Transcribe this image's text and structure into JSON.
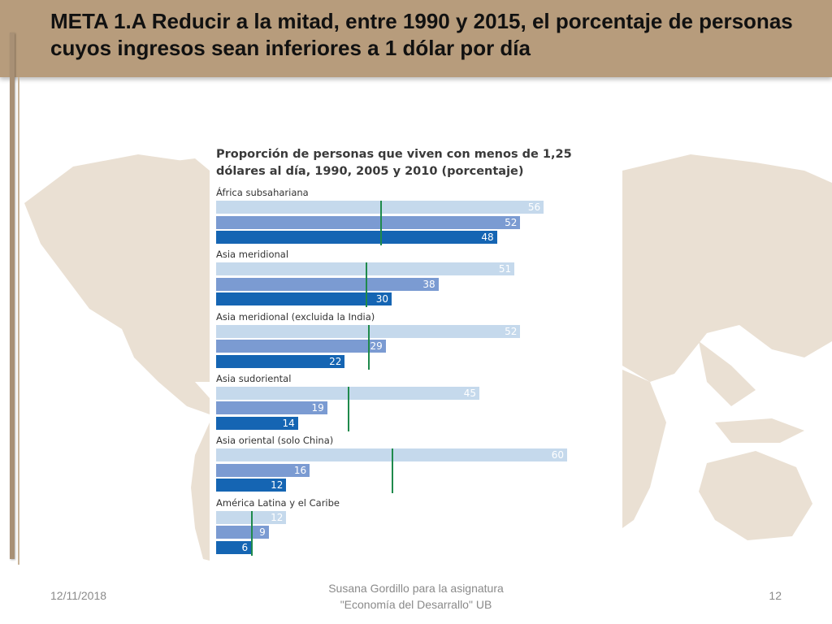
{
  "slide": {
    "title": "META 1.A Reducir a la mitad, entre 1990 y 2015, el porcentaje de personas cuyos ingresos sean inferiores a 1 dólar por día",
    "footer_date": "12/11/2018",
    "footer_center_line1": "Susana Gordillo para la asignatura",
    "footer_center_line2": "\"Economía del Desarrallo\" UB",
    "page_number": "12"
  },
  "colors": {
    "title_bar": "#b79c7c",
    "bar_1990": "#c5d9ec",
    "bar_2005": "#7b9bd2",
    "bar_2010": "#1565b3",
    "target_line": "#1f8a4c",
    "map_land": "#eae0d3"
  },
  "chart_data": {
    "type": "bar",
    "orientation": "horizontal",
    "title": "Proporción de personas que viven con menos de 1,25 dólares al día, 1990, 2005 y 2010 (porcentaje)",
    "years": [
      "1990",
      "2005",
      "2010"
    ],
    "xlim": [
      0,
      60
    ],
    "categories": [
      "África subsahariana",
      "Asia meridional",
      "Asia meridional (excluida la India)",
      "Asia sudoriental",
      "Asia oriental (solo China)",
      "América Latina y el Caribe"
    ],
    "series": [
      {
        "values": [
          56,
          51,
          52,
          45,
          60,
          12
        ]
      },
      {
        "values": [
          52,
          38,
          29,
          19,
          16,
          9
        ]
      },
      {
        "values": [
          48,
          30,
          22,
          14,
          12,
          6
        ]
      }
    ],
    "target_2015": [
      28,
      25.5,
      26,
      22.5,
      30,
      6
    ]
  }
}
